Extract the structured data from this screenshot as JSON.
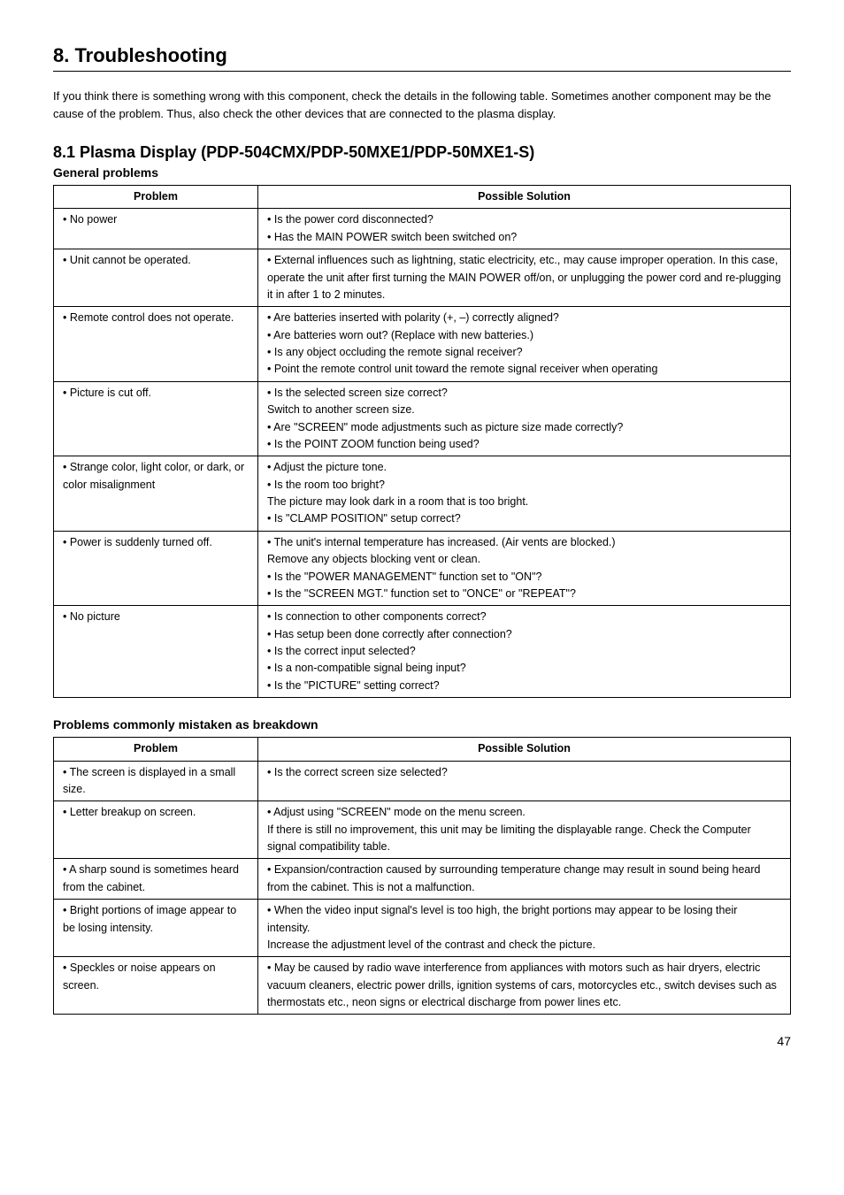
{
  "section": {
    "title": "8. Troubleshooting",
    "intro": "If you think there is something wrong with this component, check the details in the following table. Sometimes another component may be the cause of the problem. Thus, also check the other devices that are connected to the plasma display."
  },
  "subsection": {
    "title": "8.1  Plasma Display (PDP-504CMX/PDP-50MXE1/PDP-50MXE1-S)"
  },
  "table1": {
    "heading": "General problems",
    "col_problem": "Problem",
    "col_solution": "Possible Solution",
    "rows": [
      {
        "problem": "• No power",
        "solution": "• Is the power cord disconnected?\n• Has the MAIN POWER switch been switched on?"
      },
      {
        "problem": "• Unit cannot be operated.",
        "solution": "• External influences such as lightning, static electricity, etc., may cause improper operation. In this case, operate the unit after first turning the MAIN POWER off/on, or unplugging the power cord and re-plugging it in after 1 to 2 minutes."
      },
      {
        "problem": "• Remote control does not operate.",
        "solution": "• Are batteries inserted with polarity (+, –) correctly aligned?\n• Are batteries worn out? (Replace with new batteries.)\n• Is any object occluding the remote signal receiver?\n• Point the remote control unit toward the remote signal receiver when operating"
      },
      {
        "problem": "• Picture is cut off.",
        "solution": "• Is the selected screen size correct?\n  Switch to another screen size.\n• Are \"SCREEN\" mode adjustments such as picture size made correctly?\n• Is the POINT ZOOM function being used?"
      },
      {
        "problem": "• Strange color, light color, or dark, or color misalignment",
        "solution": "• Adjust the picture tone.\n• Is the room too bright?\n  The picture may look dark in a room that is too bright.\n• Is \"CLAMP POSITION\" setup correct?"
      },
      {
        "problem": "• Power is suddenly turned off.",
        "solution": "• The unit's internal temperature has increased. (Air vents are blocked.)\n  Remove any objects blocking vent or clean.\n• Is the \"POWER MANAGEMENT\" function set to \"ON\"?\n• Is the \"SCREEN MGT.\" function set to \"ONCE\" or \"REPEAT\"?"
      },
      {
        "problem": "• No picture",
        "solution": "• Is connection to other components correct?\n• Has setup been done correctly after connection?\n• Is the correct input selected?\n• Is a non-compatible signal being input?\n• Is the \"PICTURE\" setting correct?"
      }
    ]
  },
  "table2": {
    "heading": "Problems commonly mistaken as breakdown",
    "col_problem": "Problem",
    "col_solution": "Possible Solution",
    "rows": [
      {
        "problem": "• The screen is displayed in a small size.",
        "solution": "• Is the correct screen size selected?"
      },
      {
        "problem": "• Letter breakup on screen.",
        "solution": "• Adjust using \"SCREEN\" mode on the menu screen.\n  If there is still no improvement, this unit may be limiting the displayable range. Check the Computer signal compatibility table."
      },
      {
        "problem": "• A sharp sound is sometimes heard from the cabinet.",
        "solution": "• Expansion/contraction caused by surrounding temperature change may result in sound being heard from the cabinet. This is not a malfunction."
      },
      {
        "problem": "• Bright portions of image appear to be losing intensity.",
        "solution": "• When the video input signal's level is too high, the bright portions may appear to be losing their intensity.\n  Increase the adjustment level of the contrast and check the picture."
      },
      {
        "problem": "• Speckles or noise appears on screen.",
        "solution": "• May be caused by radio wave interference from appliances with motors such as hair dryers, electric vacuum cleaners, electric power drills, ignition systems of cars, motorcycles etc., switch devises such as thermostats etc., neon signs or electrical discharge from power lines etc."
      }
    ]
  },
  "page_number": "47"
}
